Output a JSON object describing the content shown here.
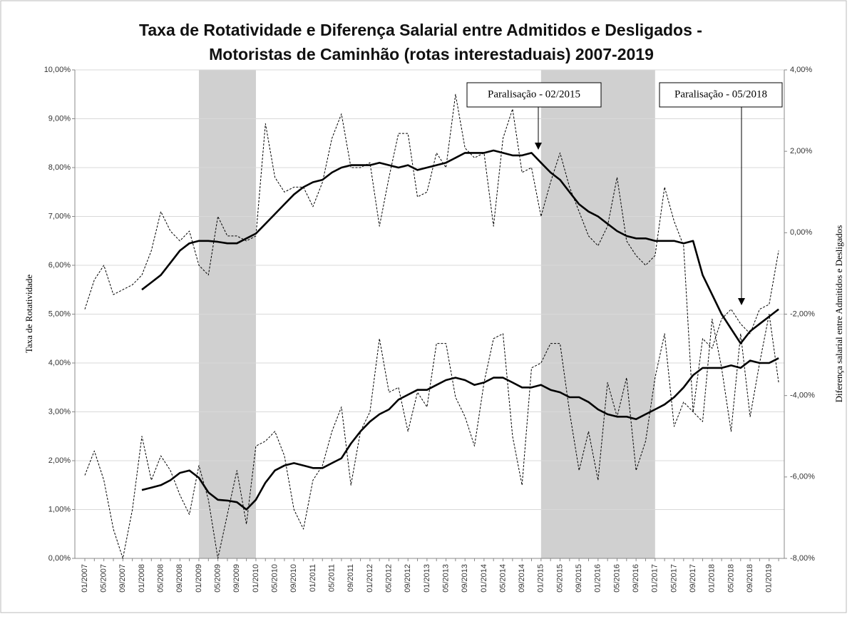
{
  "chart_data": {
    "type": "line",
    "title": [
      "Taxa de Rotatividade e Diferença Salarial entre Admitidos e Desligados -",
      "Motoristas de Caminhão (rotas interestaduais) 2007-2019"
    ],
    "y_label": "Taxa de Rotatividade",
    "y2_label": "Diferença salarial entre Admitidos e Desligados",
    "categories": [
      "01/2007",
      null,
      "05/2007",
      null,
      "09/2007",
      null,
      "01/2008",
      null,
      "05/2008",
      null,
      "09/2008",
      null,
      "01/2009",
      null,
      "05/2009",
      null,
      "09/2009",
      null,
      "01/2010",
      null,
      "05/2010",
      null,
      "09/2010",
      null,
      "01/2011",
      null,
      "05/2011",
      null,
      "09/2011",
      null,
      "01/2012",
      null,
      "05/2012",
      null,
      "09/2012",
      null,
      "01/2013",
      null,
      "05/2013",
      null,
      "09/2013",
      null,
      "01/2014",
      null,
      "05/2014",
      null,
      "09/2014",
      null,
      "01/2015",
      null,
      "05/2015",
      null,
      "09/2015",
      null,
      "01/2016",
      null,
      "05/2016",
      null,
      "09/2016",
      null,
      "01/2017",
      null,
      "05/2017",
      null,
      "09/2017",
      null,
      "01/2018",
      null,
      "05/2018",
      null,
      "09/2018",
      null,
      "01/2019",
      null
    ],
    "ylim": [
      0,
      10
    ],
    "yticks": [
      {
        "value": 0,
        "label": "0,00%"
      },
      {
        "value": 1,
        "label": "1,00%"
      },
      {
        "value": 2,
        "label": "2,00%"
      },
      {
        "value": 3,
        "label": "3,00%"
      },
      {
        "value": 4,
        "label": "4,00%"
      },
      {
        "value": 5,
        "label": "5,00%"
      },
      {
        "value": 6,
        "label": "6,00%"
      },
      {
        "value": 7,
        "label": "7,00%"
      },
      {
        "value": 8,
        "label": "8,00%"
      },
      {
        "value": 9,
        "label": "9,00%"
      },
      {
        "value": 10,
        "label": "10,00%"
      }
    ],
    "y2lim": [
      -8,
      4
    ],
    "y2ticks": [
      {
        "value": -8,
        "label": "-8,00%"
      },
      {
        "value": -6,
        "label": "-6,00%"
      },
      {
        "value": -4,
        "label": "-4,00%"
      },
      {
        "value": -2,
        "label": "-2,00%"
      },
      {
        "value": 0,
        "label": "0,00%"
      },
      {
        "value": 2,
        "label": "2,00%"
      },
      {
        "value": 4,
        "label": "4,00%"
      }
    ],
    "grid": true,
    "shaded": [
      {
        "start": "01/2009",
        "end": "01/2010",
        "color": "#d0d0d0"
      },
      {
        "start": "01/2015",
        "end": "01/2017",
        "color": "#d0d0d0"
      }
    ],
    "annotations": [
      {
        "text": "Paralisação - 02/2015"
      },
      {
        "text": "Paralisação - 05/2018"
      }
    ],
    "series": [
      {
        "color": "#000000",
        "dashed": true,
        "axis": "y",
        "values": [
          5.1,
          5.7,
          6.0,
          5.4,
          5.5,
          5.6,
          5.8,
          6.3,
          7.1,
          6.7,
          6.5,
          6.7,
          6.0,
          5.8,
          7.0,
          6.6,
          6.6,
          6.5,
          6.6,
          8.9,
          7.8,
          7.5,
          7.6,
          7.6,
          7.2,
          7.7,
          8.6,
          9.1,
          8.0,
          8.0,
          8.1,
          6.8,
          7.8,
          8.7,
          8.7,
          7.4,
          7.5,
          8.3,
          8.0,
          9.5,
          8.4,
          8.2,
          8.3,
          6.8,
          8.6,
          9.2,
          7.9,
          8.0,
          7.0,
          7.7,
          8.3,
          7.6,
          7.1,
          6.6,
          6.4,
          6.8,
          7.8,
          6.5,
          6.2,
          6.0,
          6.2,
          7.6,
          6.9,
          6.4,
          3.0,
          4.5,
          4.3,
          4.9,
          5.1,
          4.8,
          4.6,
          5.1,
          5.2,
          6.3
        ]
      },
      {
        "color": "#000000",
        "dashed": false,
        "axis": "y",
        "values": [
          null,
          null,
          null,
          null,
          null,
          null,
          5.5,
          5.65,
          5.8,
          6.05,
          6.3,
          6.45,
          6.5,
          6.5,
          6.48,
          6.45,
          6.45,
          6.55,
          6.65,
          6.85,
          7.05,
          7.25,
          7.45,
          7.6,
          7.7,
          7.75,
          7.9,
          8.0,
          8.05,
          8.05,
          8.05,
          8.1,
          8.05,
          8.0,
          8.05,
          7.95,
          8.0,
          8.05,
          8.1,
          8.2,
          8.3,
          8.3,
          8.3,
          8.35,
          8.3,
          8.25,
          8.25,
          8.3,
          8.1,
          7.9,
          7.75,
          7.5,
          7.25,
          7.1,
          7.0,
          6.85,
          6.7,
          6.6,
          6.55,
          6.55,
          6.5,
          6.5,
          6.5,
          6.45,
          6.5,
          5.8,
          5.4,
          5.0,
          4.7,
          4.4,
          4.65,
          4.8,
          4.95,
          5.1
        ]
      },
      {
        "color": "#000000",
        "dashed": true,
        "axis": "y2",
        "values": [
          -5.96,
          -5.36,
          -6.08,
          -7.28,
          -8.0,
          -6.8,
          -5.0,
          -6.08,
          -5.48,
          -5.84,
          -6.44,
          -6.92,
          -5.72,
          -6.56,
          -8.0,
          -6.92,
          -5.84,
          -7.16,
          -5.24,
          -5.12,
          -4.88,
          -5.48,
          -6.8,
          -7.28,
          -6.08,
          -5.72,
          -4.88,
          -4.28,
          -6.2,
          -4.88,
          -4.4,
          -2.6,
          -3.92,
          -3.8,
          -4.88,
          -3.92,
          -4.28,
          -2.72,
          -2.72,
          -4.04,
          -4.52,
          -5.24,
          -3.68,
          -2.6,
          -2.48,
          -5.0,
          -6.2,
          -3.32,
          -3.2,
          -2.72,
          -2.72,
          -4.4,
          -5.84,
          -4.88,
          -6.08,
          -3.68,
          -4.52,
          -3.56,
          -5.84,
          -5.12,
          -3.56,
          -2.48,
          -4.76,
          -4.16,
          -4.4,
          -4.64,
          -2.12,
          -3.32,
          -4.88,
          -2.48,
          -4.52,
          -3.2,
          -2.0,
          -3.68
        ]
      },
      {
        "color": "#000000",
        "dashed": false,
        "axis": "y2",
        "values": [
          null,
          null,
          null,
          null,
          null,
          null,
          -6.32,
          -6.26,
          -6.2,
          -6.08,
          -5.9,
          -5.84,
          -6.02,
          -6.38,
          -6.56,
          -6.58,
          -6.62,
          -6.8,
          -6.56,
          -6.14,
          -5.84,
          -5.72,
          -5.66,
          -5.72,
          -5.78,
          -5.78,
          -5.66,
          -5.54,
          -5.18,
          -4.88,
          -4.64,
          -4.46,
          -4.34,
          -4.1,
          -3.98,
          -3.86,
          -3.86,
          -3.74,
          -3.62,
          -3.56,
          -3.62,
          -3.74,
          -3.68,
          -3.56,
          -3.56,
          -3.68,
          -3.8,
          -3.8,
          -3.74,
          -3.86,
          -3.92,
          -4.04,
          -4.04,
          -4.16,
          -4.34,
          -4.46,
          -4.52,
          -4.52,
          -4.58,
          -4.46,
          -4.34,
          -4.22,
          -4.04,
          -3.8,
          -3.5,
          -3.32,
          -3.32,
          -3.32,
          -3.26,
          -3.32,
          -3.14,
          -3.2,
          -3.2,
          -3.08
        ]
      }
    ]
  }
}
